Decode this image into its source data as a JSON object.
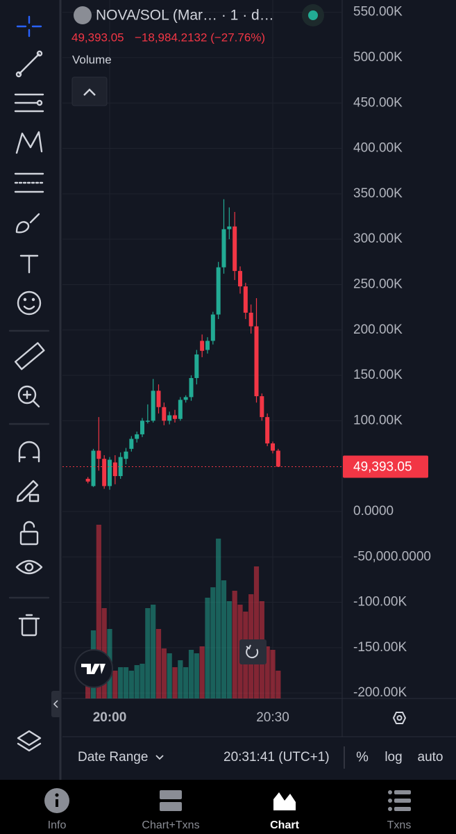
{
  "header": {
    "symbol": "NOVA/SOL (Mar… · 1 · d…",
    "price": "49,393.05",
    "change": "−18,984.2132 (−27.76%)",
    "indicator": "Volume"
  },
  "chart": {
    "type": "candlestick",
    "categories": [
      null,
      null,
      null,
      null,
      "20:00",
      null,
      null,
      null,
      null,
      null,
      null,
      null,
      null,
      null,
      null,
      null,
      null,
      null,
      null,
      null,
      null,
      null,
      null,
      null,
      null,
      null,
      null,
      null,
      null,
      null,
      null,
      null,
      null,
      null,
      "20:30",
      null
    ],
    "open": [
      36000,
      28000,
      67000,
      58000,
      28000,
      54000,
      39000,
      58000,
      69000,
      80000,
      85000,
      100000,
      100000,
      133000,
      115000,
      100000,
      106000,
      102000,
      123000,
      126000,
      147000,
      188000,
      178000,
      188000,
      217000,
      269000,
      311000,
      314000,
      265000,
      248000,
      219000,
      204000,
      127000,
      104000,
      75000,
      67000
    ],
    "high": [
      38000,
      69000,
      104000,
      62000,
      60000,
      62000,
      65000,
      70000,
      83000,
      88000,
      103000,
      118000,
      146000,
      140000,
      120000,
      110000,
      112000,
      126000,
      128000,
      150000,
      178000,
      195000,
      192000,
      220000,
      275000,
      344000,
      335000,
      330000,
      270000,
      252000,
      228000,
      235000,
      130000,
      108000,
      77000,
      69000
    ],
    "low": [
      31000,
      27000,
      45000,
      25000,
      24000,
      30000,
      36000,
      52000,
      66000,
      76000,
      82000,
      97000,
      98000,
      108000,
      95000,
      96000,
      98000,
      100000,
      120000,
      122000,
      140000,
      170000,
      174000,
      184000,
      212000,
      262000,
      300000,
      255000,
      240000,
      212000,
      196000,
      120000,
      100000,
      72000,
      64000,
      49000
    ],
    "close": [
      33000,
      67000,
      58000,
      28000,
      57000,
      39000,
      60000,
      66000,
      80000,
      85000,
      100000,
      100000,
      133000,
      115000,
      100000,
      106000,
      102000,
      123000,
      126000,
      147000,
      173000,
      177000,
      188000,
      217000,
      269000,
      311000,
      314000,
      265000,
      248000,
      219000,
      204000,
      127000,
      104000,
      75000,
      67000,
      49393.05
    ],
    "volume": [
      20,
      98,
      250,
      130,
      100,
      40,
      45,
      45,
      40,
      48,
      50,
      130,
      135,
      100,
      72,
      65,
      45,
      55,
      45,
      70,
      65,
      75,
      145,
      160,
      230,
      170,
      140,
      155,
      135,
      125,
      150,
      190,
      140,
      75,
      70,
      40
    ],
    "ylim": [
      -206000,
      563500
    ],
    "yticks": [
      {
        "value": 550000,
        "label": "550.00K"
      },
      {
        "value": 500000,
        "label": "500.00K"
      },
      {
        "value": 450000,
        "label": "450.00K"
      },
      {
        "value": 400000,
        "label": "400.00K"
      },
      {
        "value": 350000,
        "label": "350.00K"
      },
      {
        "value": 300000,
        "label": "300.00K"
      },
      {
        "value": 250000,
        "label": "250.00K"
      },
      {
        "value": 200000,
        "label": "200.00K"
      },
      {
        "value": 150000,
        "label": "150.00K"
      },
      {
        "value": 100000,
        "label": "100.00K"
      },
      {
        "value": 0,
        "label": "0.0000"
      },
      {
        "value": -50000,
        "label": "-50,000.0000"
      },
      {
        "value": -100000,
        "label": "-100.00K"
      },
      {
        "value": -150000,
        "label": "-150.00K"
      },
      {
        "value": -200000,
        "label": "-200.00K"
      }
    ],
    "last_price": {
      "value": 49393.05,
      "label": "49,393.05"
    },
    "up_color": "#22ab94",
    "down_color": "#f23645",
    "grid": true
  },
  "footer": {
    "range": "Date Range",
    "time": "20:31:41 (UTC+1)",
    "percent": "%",
    "log": "log",
    "auto": "auto"
  },
  "nav": [
    {
      "label": "Info"
    },
    {
      "label": "Chart+Txns"
    },
    {
      "label": "Chart"
    },
    {
      "label": "Txns"
    }
  ]
}
